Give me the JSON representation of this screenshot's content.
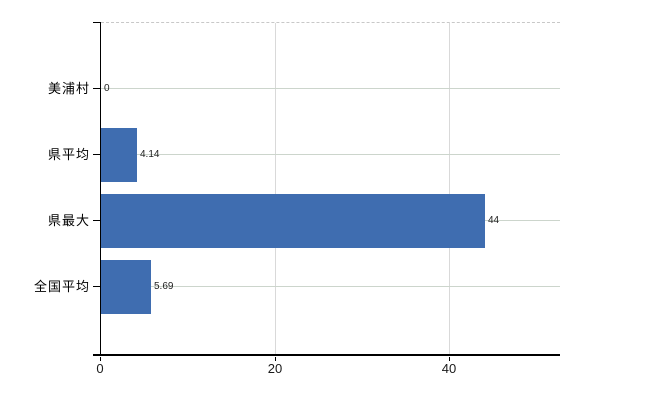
{
  "chart_data": {
    "type": "bar",
    "orientation": "horizontal",
    "title": "",
    "xlabel": "",
    "ylabel": "",
    "categories": [
      "美浦村",
      "県平均",
      "県最大",
      "全国平均"
    ],
    "values": [
      0,
      4.14,
      44,
      5.69
    ],
    "value_labels": [
      "0",
      "4.14",
      "44",
      "5.69"
    ],
    "xticks": [
      0,
      20,
      40
    ],
    "xtick_labels": [
      "0",
      "20",
      "40"
    ],
    "xlim": [
      0,
      52.6
    ],
    "grid": "on",
    "legend": "none",
    "colors": {
      "bar": "#3f6db0",
      "grid_horizontal": "#ccd5cc",
      "grid_vertical": "#d9d9d9",
      "top_border": "#c8c8c8",
      "axis": "#000000",
      "category_text": "#000000",
      "tick_text": "#1a1a1a",
      "value_text": "#1f1f1f"
    }
  }
}
